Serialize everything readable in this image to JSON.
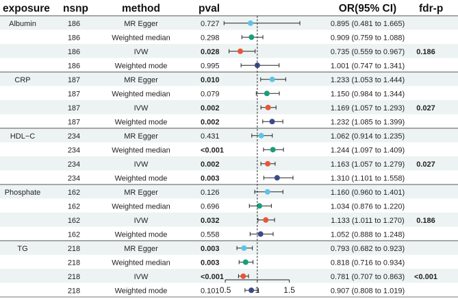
{
  "chart_data": {
    "type": "forest",
    "columns": {
      "exposure": "exposure",
      "nsnp": "nsnp",
      "method": "method",
      "pval": "pval",
      "or": "OR(95% CI)",
      "fdr": "fdr-p"
    },
    "x_axis": {
      "ticks": [
        "0.5",
        "1",
        "1.5"
      ],
      "tick_values": [
        0.5,
        1.0,
        1.5
      ],
      "xlim": [
        0.35,
        1.9
      ],
      "reference_line": 1.0
    },
    "method_colors": {
      "MR Egger": "#5bc4e8",
      "Weighted median": "#1a9e7a",
      "IVW": "#e8553a",
      "Weighted mode": "#3a4a8a"
    },
    "row_shading": "#edf3f3",
    "groups": [
      {
        "exposure": "Albumin",
        "rows": [
          {
            "nsnp": "186",
            "method": "MR Egger",
            "pval": "0.727",
            "pval_bold": false,
            "or_text": "0.895 (0.481 to 1.665)",
            "or": 0.895,
            "lo": 0.481,
            "hi": 1.665,
            "fdr": ""
          },
          {
            "nsnp": "186",
            "method": "Weighted median",
            "pval": "0.298",
            "pval_bold": false,
            "or_text": "0.909 (0.759 to 1.088)",
            "or": 0.909,
            "lo": 0.759,
            "hi": 1.088,
            "fdr": ""
          },
          {
            "nsnp": "186",
            "method": "IVW",
            "pval": "0.028",
            "pval_bold": true,
            "or_text": "0.735 (0.559 to 0.967)",
            "or": 0.735,
            "lo": 0.559,
            "hi": 0.967,
            "fdr": "0.186"
          },
          {
            "nsnp": "186",
            "method": "Weighted mode",
            "pval": "0.995",
            "pval_bold": false,
            "or_text": "1.001 (0.747 to 1.341)",
            "or": 1.001,
            "lo": 0.747,
            "hi": 1.341,
            "fdr": ""
          }
        ]
      },
      {
        "exposure": "CRP",
        "rows": [
          {
            "nsnp": "187",
            "method": "MR Egger",
            "pval": "0.010",
            "pval_bold": true,
            "or_text": "1.233 (1.053 to 1.444)",
            "or": 1.233,
            "lo": 1.053,
            "hi": 1.444,
            "fdr": ""
          },
          {
            "nsnp": "187",
            "method": "Weighted median",
            "pval": "0.079",
            "pval_bold": false,
            "or_text": "1.150 (0.984 to 1.344)",
            "or": 1.15,
            "lo": 0.984,
            "hi": 1.344,
            "fdr": ""
          },
          {
            "nsnp": "187",
            "method": "IVW",
            "pval": "0.002",
            "pval_bold": true,
            "or_text": "1.169 (1.057 to 1.293)",
            "or": 1.169,
            "lo": 1.057,
            "hi": 1.293,
            "fdr": "0.027"
          },
          {
            "nsnp": "187",
            "method": "Weighted mode",
            "pval": "0.002",
            "pval_bold": true,
            "or_text": "1.232 (1.085 to 1.399)",
            "or": 1.232,
            "lo": 1.085,
            "hi": 1.399,
            "fdr": ""
          }
        ]
      },
      {
        "exposure": "HDL−C",
        "rows": [
          {
            "nsnp": "234",
            "method": "MR Egger",
            "pval": "0.431",
            "pval_bold": false,
            "or_text": "1.062 (0.914 to 1.235)",
            "or": 1.062,
            "lo": 0.914,
            "hi": 1.235,
            "fdr": ""
          },
          {
            "nsnp": "234",
            "method": "Weighted median",
            "pval": "<0.001",
            "pval_bold": true,
            "or_text": "1.244 (1.097 to 1.409)",
            "or": 1.244,
            "lo": 1.097,
            "hi": 1.409,
            "fdr": ""
          },
          {
            "nsnp": "234",
            "method": "IVW",
            "pval": "0.002",
            "pval_bold": true,
            "or_text": "1.163 (1.057 to 1.279)",
            "or": 1.163,
            "lo": 1.057,
            "hi": 1.279,
            "fdr": "0.027"
          },
          {
            "nsnp": "234",
            "method": "Weighted mode",
            "pval": "0.003",
            "pval_bold": true,
            "or_text": "1.310 (1.101 to 1.558)",
            "or": 1.31,
            "lo": 1.101,
            "hi": 1.558,
            "fdr": ""
          }
        ]
      },
      {
        "exposure": "Phosphate",
        "rows": [
          {
            "nsnp": "162",
            "method": "MR Egger",
            "pval": "0.126",
            "pval_bold": false,
            "or_text": "1.160 (0.960 to 1.401)",
            "or": 1.16,
            "lo": 0.96,
            "hi": 1.401,
            "fdr": ""
          },
          {
            "nsnp": "162",
            "method": "Weighted median",
            "pval": "0.696",
            "pval_bold": false,
            "or_text": "1.034 (0.876 to 1.220)",
            "or": 1.034,
            "lo": 0.876,
            "hi": 1.22,
            "fdr": ""
          },
          {
            "nsnp": "162",
            "method": "IVW",
            "pval": "0.032",
            "pval_bold": true,
            "or_text": "1.133 (1.011 to 1.270)",
            "or": 1.133,
            "lo": 1.011,
            "hi": 1.27,
            "fdr": "0.186"
          },
          {
            "nsnp": "162",
            "method": "Weighted mode",
            "pval": "0.558",
            "pval_bold": false,
            "or_text": "1.052 (0.888 to 1.248)",
            "or": 1.052,
            "lo": 0.888,
            "hi": 1.248,
            "fdr": ""
          }
        ]
      },
      {
        "exposure": "TG",
        "rows": [
          {
            "nsnp": "218",
            "method": "MR Egger",
            "pval": "0.003",
            "pval_bold": true,
            "or_text": "0.793 (0.682 to 0.923)",
            "or": 0.793,
            "lo": 0.682,
            "hi": 0.923,
            "fdr": ""
          },
          {
            "nsnp": "218",
            "method": "Weighted median",
            "pval": "0.003",
            "pval_bold": true,
            "or_text": "0.818 (0.716 to 0.934)",
            "or": 0.818,
            "lo": 0.716,
            "hi": 0.934,
            "fdr": ""
          },
          {
            "nsnp": "218",
            "method": "IVW",
            "pval": "<0.001",
            "pval_bold": true,
            "or_text": "0.781 (0.707 to 0.863)",
            "or": 0.781,
            "lo": 0.707,
            "hi": 0.863,
            "fdr": "<0.001"
          },
          {
            "nsnp": "218",
            "method": "Weighted mode",
            "pval": "0.101",
            "pval_bold": false,
            "or_text": "0.907 (0.808 to 1.019)",
            "or": 0.907,
            "lo": 0.808,
            "hi": 1.019,
            "fdr": ""
          }
        ]
      }
    ]
  }
}
